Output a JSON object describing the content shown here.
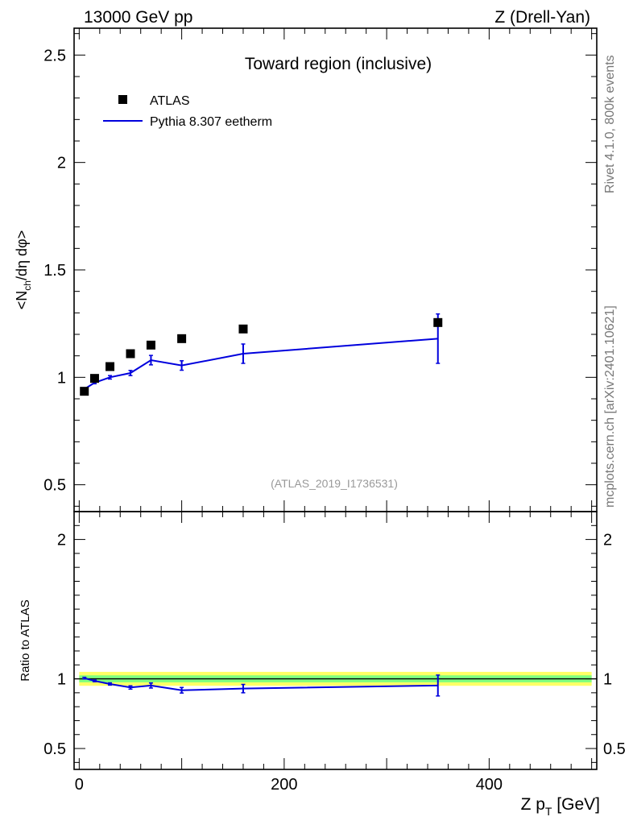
{
  "header": {
    "left": "13000 GeV pp",
    "right": "Z (Drell-Yan)"
  },
  "side": {
    "rivet": "Rivet 4.1.0,  800k events",
    "source": "mcplots.cern.ch [arXiv:2401.10621]"
  },
  "chart_data": [
    {
      "type": "scatter",
      "panel": "main",
      "title": "Toward region (inclusive)",
      "watermark": "(ATLAS_2019_I1736531)",
      "ylabel": {
        "pre": "<N",
        "sub": "ch",
        "post": "/dη dφ>"
      },
      "xlim": [
        -5,
        505
      ],
      "ylim": [
        0.375,
        2.625
      ],
      "yticks": [
        0.5,
        1,
        1.5,
        2,
        2.5
      ],
      "ytick_labels": [
        "0.5",
        "1",
        "1.5",
        "2",
        "2.5"
      ],
      "legend_position": "top-left",
      "series": [
        {
          "name": "ATLAS",
          "kind": "data-markers",
          "color": "#000000",
          "x": [
            5,
            15,
            30,
            50,
            70,
            100,
            160,
            350
          ],
          "y": [
            0.935,
            0.995,
            1.05,
            1.11,
            1.15,
            1.18,
            1.225,
            1.255
          ]
        },
        {
          "name": "Pythia 8.307 eetherm",
          "kind": "line",
          "color": "#0000dd",
          "x": [
            5,
            15,
            30,
            50,
            70,
            100,
            160,
            350
          ],
          "y": [
            0.945,
            0.975,
            1.0,
            1.02,
            1.08,
            1.055,
            1.11,
            1.18
          ],
          "yerr": [
            0.005,
            0.005,
            0.008,
            0.012,
            0.022,
            0.022,
            0.045,
            0.115
          ]
        }
      ]
    },
    {
      "type": "line",
      "panel": "ratio",
      "ylabel": "Ratio to ATLAS",
      "xlabel": {
        "pre": "Z p",
        "sub": "T",
        "post": " [GeV]"
      },
      "xlim": [
        -5,
        505
      ],
      "ylim": [
        0.35,
        2.2
      ],
      "xticks": [
        0,
        200,
        400
      ],
      "xtick_labels": [
        "0",
        "200",
        "400"
      ],
      "yticks": [
        0.5,
        1,
        2
      ],
      "ytick_labels": [
        "0.5",
        "1",
        "2"
      ],
      "reference_band": {
        "inner": 0.025,
        "outer": 0.05,
        "inner_color": "#7fff7f",
        "outer_color": "#ffff66"
      },
      "series": [
        {
          "name": "Pythia 8.307 eetherm / ATLAS",
          "color": "#0000dd",
          "x": [
            5,
            15,
            30,
            50,
            70,
            100,
            160,
            350
          ],
          "y": [
            1.005,
            0.985,
            0.963,
            0.938,
            0.952,
            0.918,
            0.93,
            0.952
          ],
          "yerr": [
            0.006,
            0.006,
            0.008,
            0.012,
            0.018,
            0.02,
            0.03,
            0.075
          ]
        }
      ]
    }
  ]
}
